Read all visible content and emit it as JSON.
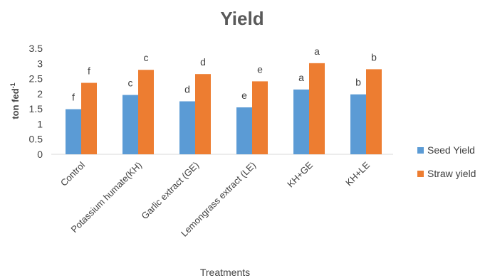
{
  "chart_data": {
    "type": "bar",
    "title": "Yield",
    "xlabel": "Treatments",
    "ylabel": {
      "base": "ton fed",
      "sup": "-1"
    },
    "ylim": [
      0,
      3.5
    ],
    "yticks": [
      "0",
      "0.5",
      "1",
      "1.5",
      "2",
      "2.5",
      "3",
      "3.5"
    ],
    "categories": [
      "Control",
      "Potassium humate(KH)",
      "Garlic extract (GE)",
      "Lemongrass extract (LE)",
      "KH+GE",
      "KH+LE"
    ],
    "series": [
      {
        "name": "Seed Yield",
        "color": "#5B9BD5",
        "values": [
          1.49,
          1.96,
          1.75,
          1.55,
          2.14,
          1.98
        ],
        "labels": [
          "f",
          "c",
          "d",
          "e",
          "a",
          "b"
        ]
      },
      {
        "name": "Straw yield",
        "color": "#ED7D31",
        "values": [
          2.36,
          2.79,
          2.65,
          2.41,
          3.01,
          2.81
        ],
        "labels": [
          "f",
          "c",
          "d",
          "e",
          "a",
          "b"
        ]
      }
    ],
    "grid": false,
    "legend": "right"
  }
}
